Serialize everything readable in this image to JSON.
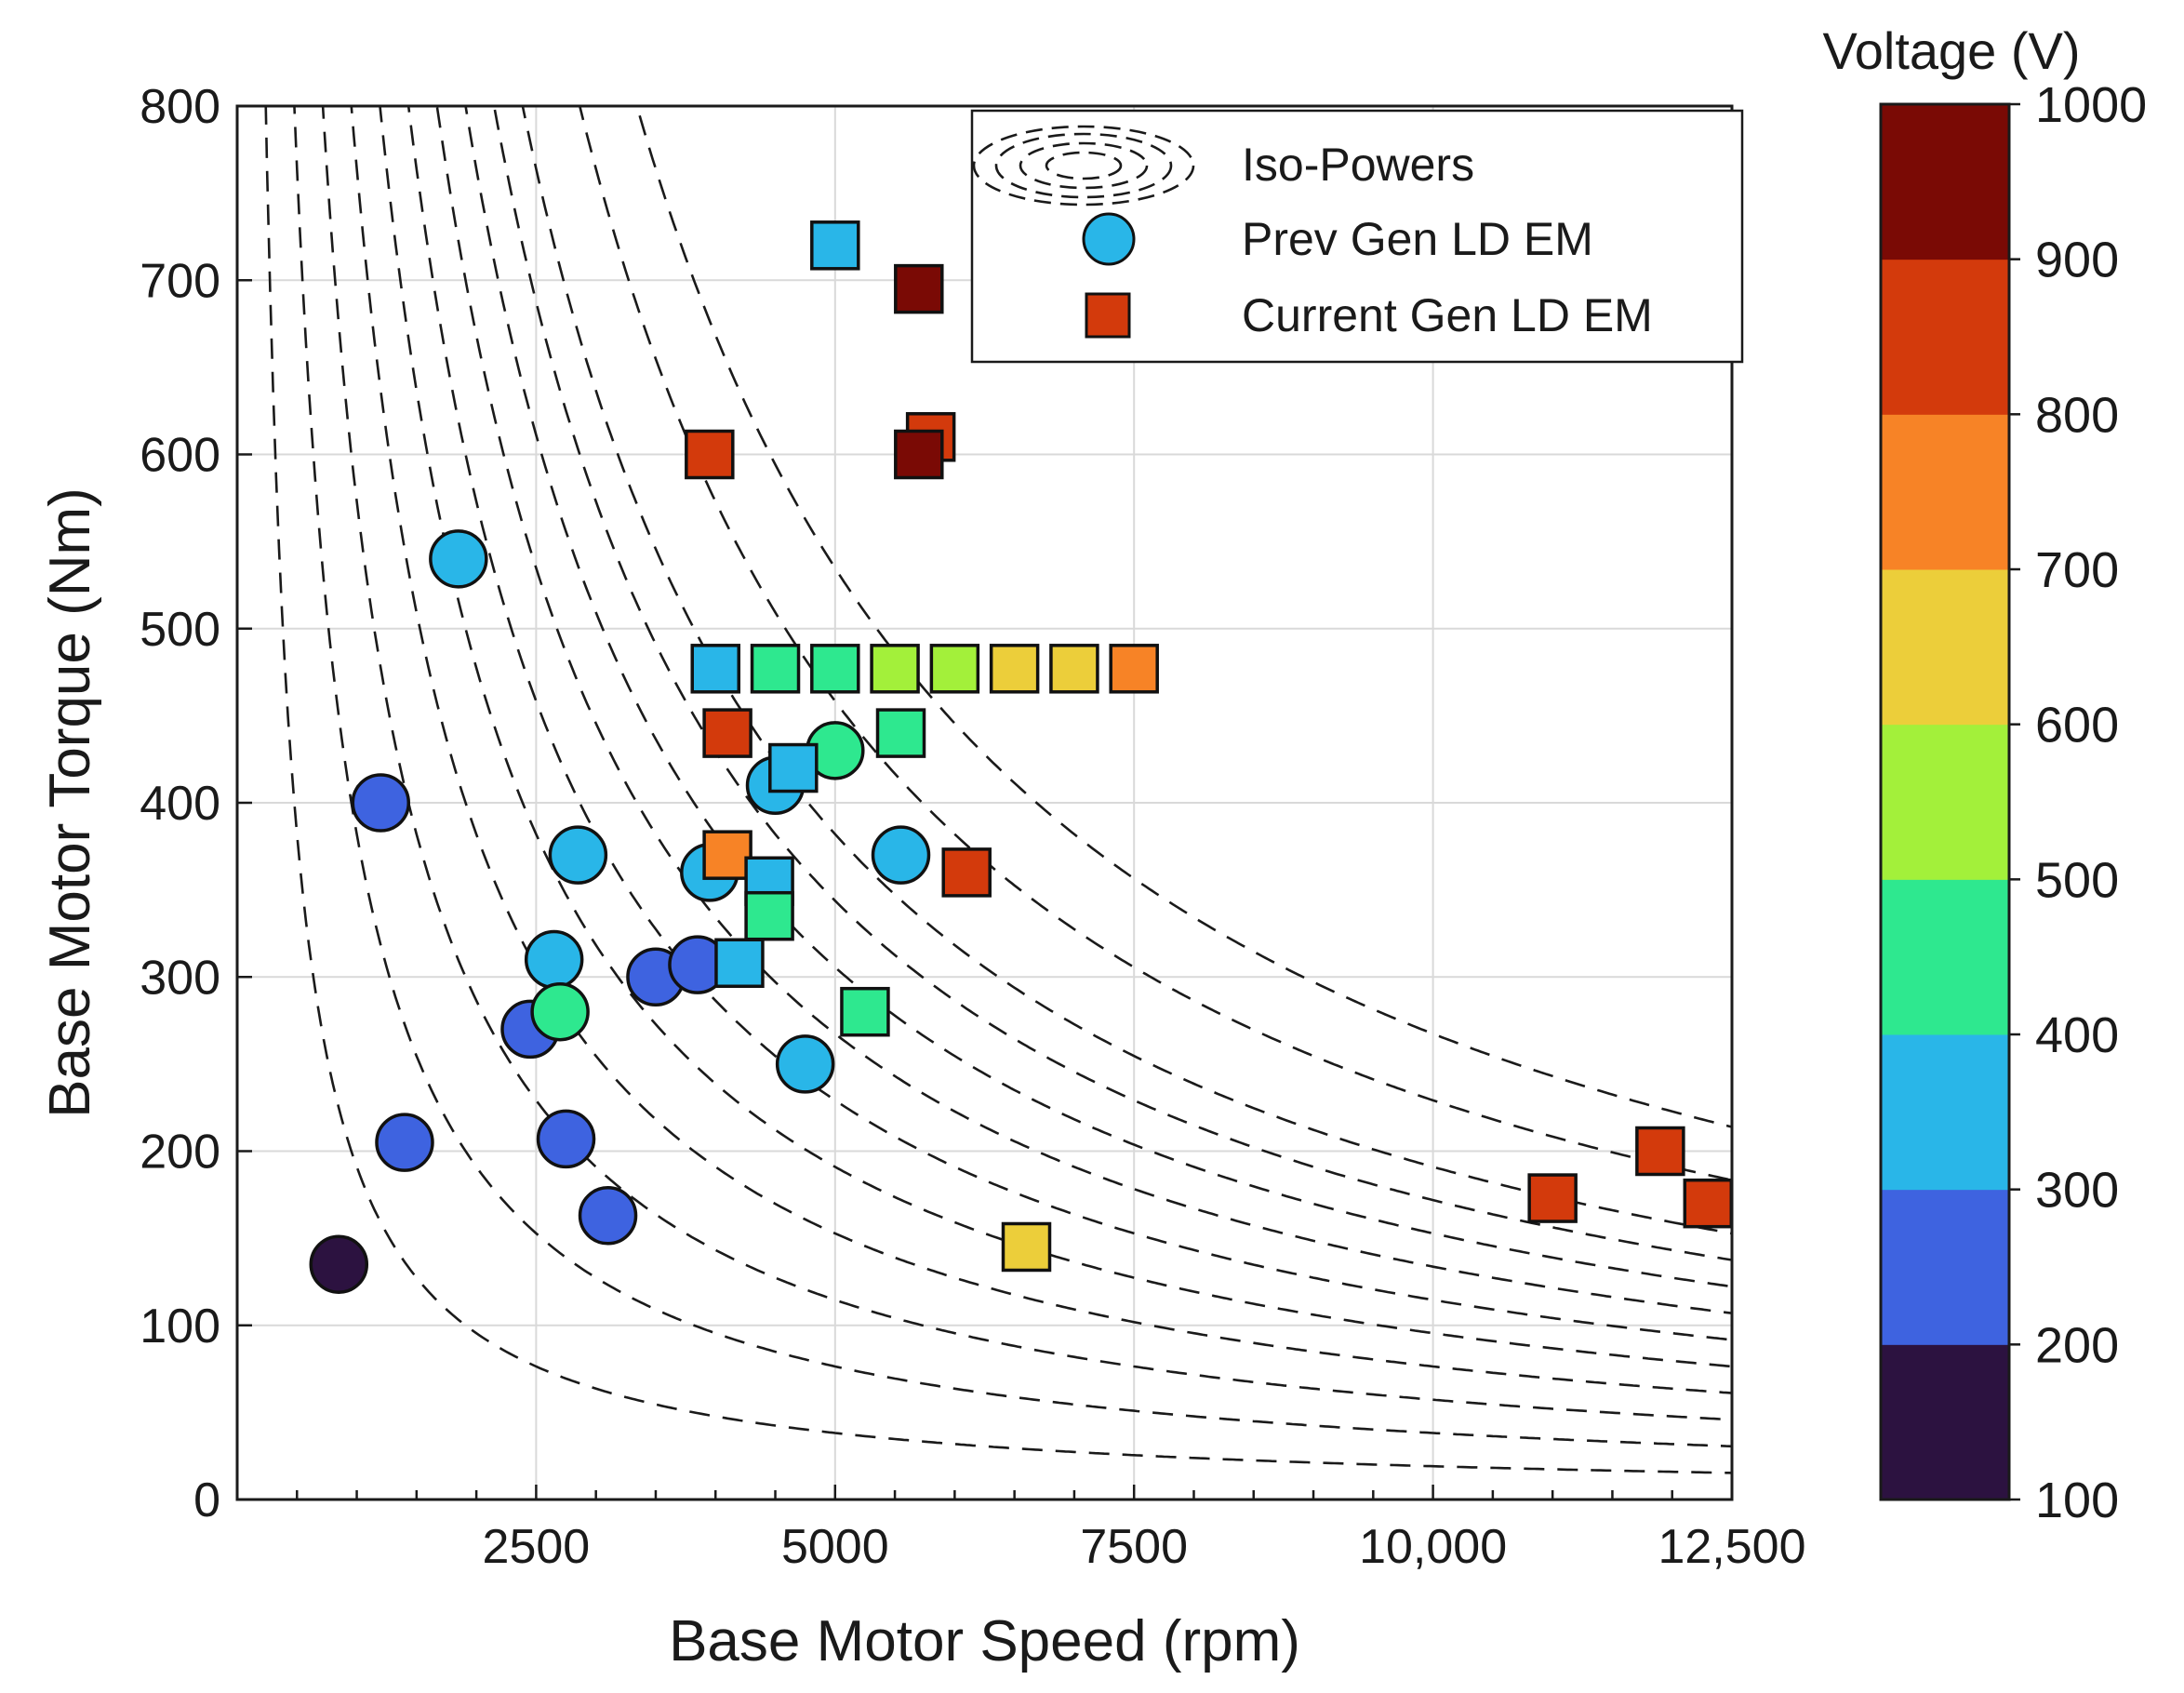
{
  "chart_data": {
    "type": "scatter",
    "xlabel": "Base Motor Speed (rpm)",
    "ylabel": "Base Motor Torque (Nm)",
    "xlim": [
      0,
      12500
    ],
    "ylim": [
      0,
      800
    ],
    "xticks": [
      2500,
      5000,
      7500,
      10000,
      12500
    ],
    "xtick_labels": [
      "2500",
      "5000",
      "7500",
      "10,000",
      "12,500"
    ],
    "yticks": [
      0,
      100,
      200,
      300,
      400,
      500,
      600,
      700,
      800
    ],
    "ytick_labels": [
      "0",
      "100",
      "200",
      "300",
      "400",
      "500",
      "600",
      "700",
      "800"
    ],
    "grid": true,
    "iso_power_kw": [
      20,
      40,
      60,
      80,
      100,
      120,
      140,
      160,
      180,
      200,
      240,
      280
    ],
    "legend": {
      "location": "top-right",
      "entries": [
        {
          "label": "Iso-Powers",
          "marker": "iso"
        },
        {
          "label": "Prev Gen LD EM",
          "marker": "circle"
        },
        {
          "label": "Current Gen LD EM",
          "marker": "square"
        }
      ]
    },
    "colorbar": {
      "title": "Voltage (V)",
      "range": [
        100,
        1000
      ],
      "tick_labels": [
        "100",
        "200",
        "300",
        "400",
        "500",
        "600",
        "700",
        "800",
        "900",
        "1000"
      ],
      "colors": [
        "#2c1240",
        "#3e63e0",
        "#29b6e8",
        "#2ee88f",
        "#a3f03a",
        "#ecce3a",
        "#f78326",
        "#d33a0c",
        "#7a0a05"
      ]
    },
    "series": [
      {
        "name": "Prev Gen LD EM",
        "marker": "circle",
        "points": [
          {
            "x": 850,
            "y": 135,
            "v": 150
          },
          {
            "x": 1400,
            "y": 205,
            "v": 250
          },
          {
            "x": 1200,
            "y": 400,
            "v": 250
          },
          {
            "x": 1850,
            "y": 540,
            "v": 350
          },
          {
            "x": 2450,
            "y": 270,
            "v": 250
          },
          {
            "x": 2650,
            "y": 310,
            "v": 350
          },
          {
            "x": 2700,
            "y": 280,
            "v": 450
          },
          {
            "x": 2750,
            "y": 207,
            "v": 250
          },
          {
            "x": 2850,
            "y": 370,
            "v": 350
          },
          {
            "x": 3100,
            "y": 163,
            "v": 250
          },
          {
            "x": 3500,
            "y": 300,
            "v": 250
          },
          {
            "x": 3850,
            "y": 307,
            "v": 250
          },
          {
            "x": 3950,
            "y": 360,
            "v": 350
          },
          {
            "x": 4500,
            "y": 410,
            "v": 350
          },
          {
            "x": 4750,
            "y": 250,
            "v": 350
          },
          {
            "x": 5000,
            "y": 430,
            "v": 450
          },
          {
            "x": 5550,
            "y": 370,
            "v": 350
          }
        ]
      },
      {
        "name": "Current Gen LD EM",
        "marker": "square",
        "points": [
          {
            "x": 5000,
            "y": 720,
            "v": 350
          },
          {
            "x": 5700,
            "y": 695,
            "v": 950
          },
          {
            "x": 3950,
            "y": 600,
            "v": 850
          },
          {
            "x": 5800,
            "y": 610,
            "v": 850
          },
          {
            "x": 5700,
            "y": 600,
            "v": 950
          },
          {
            "x": 4000,
            "y": 477,
            "v": 350
          },
          {
            "x": 4500,
            "y": 477,
            "v": 450
          },
          {
            "x": 5000,
            "y": 477,
            "v": 450
          },
          {
            "x": 5500,
            "y": 477,
            "v": 550
          },
          {
            "x": 6000,
            "y": 477,
            "v": 550
          },
          {
            "x": 6500,
            "y": 477,
            "v": 650
          },
          {
            "x": 7000,
            "y": 477,
            "v": 650
          },
          {
            "x": 7500,
            "y": 477,
            "v": 750
          },
          {
            "x": 4100,
            "y": 440,
            "v": 850
          },
          {
            "x": 5550,
            "y": 440,
            "v": 450
          },
          {
            "x": 4650,
            "y": 420,
            "v": 350
          },
          {
            "x": 4100,
            "y": 370,
            "v": 750
          },
          {
            "x": 4450,
            "y": 355,
            "v": 350
          },
          {
            "x": 6100,
            "y": 360,
            "v": 850
          },
          {
            "x": 4450,
            "y": 335,
            "v": 450
          },
          {
            "x": 4200,
            "y": 308,
            "v": 350
          },
          {
            "x": 5250,
            "y": 280,
            "v": 450
          },
          {
            "x": 6600,
            "y": 145,
            "v": 650
          },
          {
            "x": 11000,
            "y": 173,
            "v": 850
          },
          {
            "x": 11900,
            "y": 200,
            "v": 850
          },
          {
            "x": 12300,
            "y": 170,
            "v": 850
          }
        ]
      }
    ]
  }
}
